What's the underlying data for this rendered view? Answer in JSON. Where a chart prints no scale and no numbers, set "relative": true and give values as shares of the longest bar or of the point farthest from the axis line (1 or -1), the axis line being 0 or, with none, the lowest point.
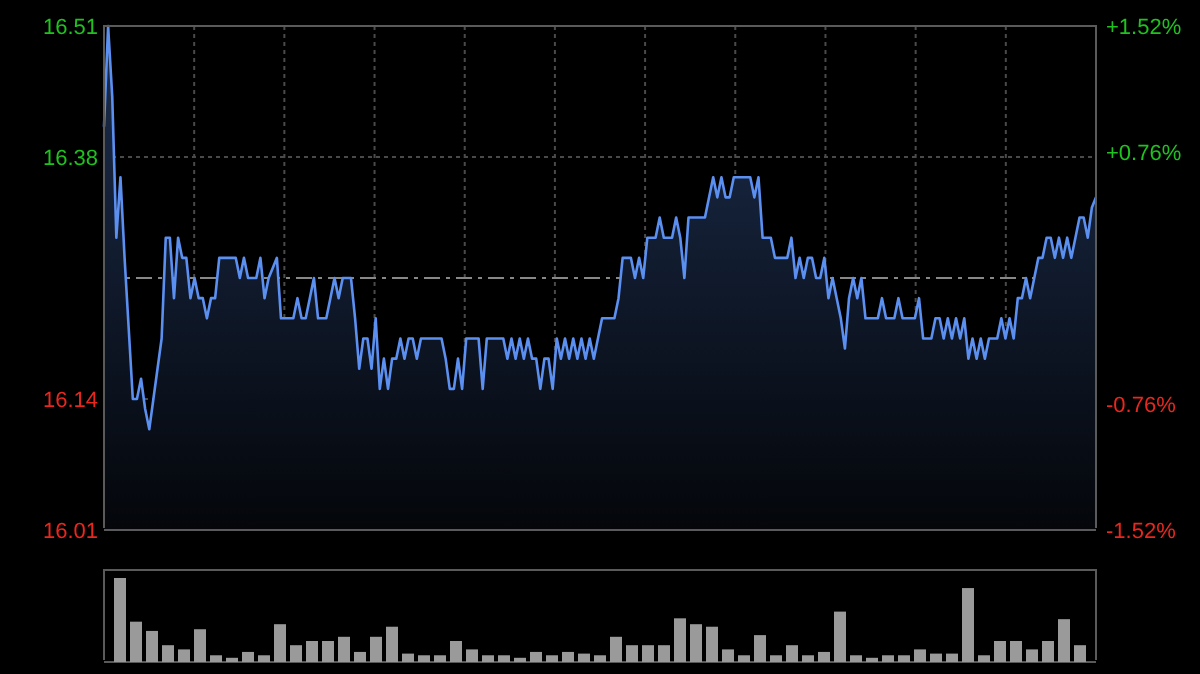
{
  "chart_data": [
    {
      "type": "area",
      "color": "#5b8ff0",
      "grid": true,
      "categories": [
        null,
        null,
        null,
        null,
        null,
        null,
        null,
        null,
        null,
        null,
        null,
        null,
        null,
        null,
        null,
        null,
        null,
        null,
        null,
        null,
        null,
        null,
        null,
        null,
        null,
        null,
        null,
        null,
        null,
        null,
        null,
        null,
        null,
        null,
        null,
        null,
        null,
        null,
        null,
        null,
        null,
        null,
        null,
        null,
        null,
        null,
        null,
        null,
        null,
        null,
        null,
        null,
        null,
        null,
        null,
        null,
        null,
        null,
        null,
        null,
        null,
        null,
        null,
        null,
        null,
        null,
        null,
        null,
        null,
        null,
        null,
        null,
        null,
        null,
        null,
        null,
        null,
        null,
        null,
        null,
        null,
        null,
        null,
        null,
        null,
        null,
        null,
        null,
        null,
        null,
        null,
        null,
        null,
        null,
        null,
        null,
        null,
        null,
        null,
        null,
        null,
        null,
        null,
        null,
        null,
        null,
        null,
        null,
        null,
        null,
        null,
        null,
        null,
        null,
        null,
        null,
        null,
        null,
        null,
        null,
        null,
        null,
        null,
        null,
        null,
        null,
        null,
        null,
        null,
        null,
        null,
        null,
        null,
        null,
        null,
        null,
        null,
        null,
        null,
        null,
        null,
        null,
        null,
        null,
        null,
        null,
        null,
        null,
        null,
        null,
        null,
        null,
        null,
        null,
        null,
        null,
        null,
        null,
        null,
        null,
        null,
        null,
        null,
        null,
        null,
        null,
        null,
        null,
        null,
        null,
        null,
        null,
        null,
        null,
        null,
        null,
        null,
        null,
        null,
        null,
        null,
        null,
        null,
        null,
        null,
        null,
        null,
        null,
        null,
        null,
        null,
        null,
        null,
        null,
        null,
        null,
        null,
        null,
        null,
        null,
        null,
        null,
        null,
        null,
        null,
        null,
        null,
        null,
        null,
        null,
        null,
        null,
        null,
        null,
        null,
        null,
        null,
        null,
        null,
        null,
        null,
        null,
        null,
        null,
        null,
        null,
        null,
        null,
        null,
        null,
        null,
        null,
        null,
        null,
        null,
        null,
        null,
        null,
        null,
        null,
        null,
        null
      ],
      "values": [
        16.41,
        16.51,
        16.44,
        16.3,
        16.36,
        16.28,
        16.21,
        16.14,
        16.14,
        16.16,
        16.13,
        16.11,
        16.14,
        16.17,
        16.2,
        16.3,
        16.3,
        16.24,
        16.3,
        16.28,
        16.28,
        16.24,
        16.26,
        16.24,
        16.24,
        16.22,
        16.24,
        16.24,
        16.28,
        16.28,
        16.28,
        16.28,
        16.28,
        16.26,
        16.28,
        16.26,
        16.26,
        16.26,
        16.28,
        16.24,
        16.26,
        16.27,
        16.28,
        16.22,
        16.22,
        16.22,
        16.22,
        16.24,
        16.22,
        16.22,
        16.24,
        16.26,
        16.22,
        16.22,
        16.22,
        16.24,
        16.26,
        16.24,
        16.26,
        16.26,
        16.26,
        16.22,
        16.17,
        16.2,
        16.2,
        16.17,
        16.22,
        16.15,
        16.18,
        16.15,
        16.18,
        16.18,
        16.2,
        16.18,
        16.2,
        16.2,
        16.18,
        16.2,
        16.2,
        16.2,
        16.2,
        16.2,
        16.2,
        16.18,
        16.15,
        16.15,
        16.18,
        16.15,
        16.2,
        16.2,
        16.2,
        16.2,
        16.15,
        16.2,
        16.2,
        16.2,
        16.2,
        16.2,
        16.18,
        16.2,
        16.18,
        16.2,
        16.18,
        16.2,
        16.18,
        16.18,
        16.15,
        16.18,
        16.18,
        16.15,
        16.2,
        16.18,
        16.2,
        16.18,
        16.2,
        16.18,
        16.2,
        16.18,
        16.2,
        16.18,
        16.2,
        16.22,
        16.22,
        16.22,
        16.22,
        16.24,
        16.28,
        16.28,
        16.28,
        16.26,
        16.28,
        16.26,
        16.3,
        16.3,
        16.3,
        16.32,
        16.3,
        16.3,
        16.3,
        16.32,
        16.3,
        16.26,
        16.32,
        16.32,
        16.32,
        16.32,
        16.32,
        16.34,
        16.36,
        16.34,
        16.36,
        16.34,
        16.34,
        16.36,
        16.36,
        16.36,
        16.36,
        16.36,
        16.34,
        16.36,
        16.3,
        16.3,
        16.3,
        16.28,
        16.28,
        16.28,
        16.28,
        16.3,
        16.26,
        16.28,
        16.26,
        16.28,
        16.28,
        16.26,
        16.26,
        16.28,
        16.24,
        16.26,
        16.24,
        16.22,
        16.19,
        16.24,
        16.26,
        16.24,
        16.26,
        16.22,
        16.22,
        16.22,
        16.22,
        16.24,
        16.22,
        16.22,
        16.22,
        16.24,
        16.22,
        16.22,
        16.22,
        16.22,
        16.24,
        16.2,
        16.2,
        16.2,
        16.22,
        16.22,
        16.2,
        16.22,
        16.2,
        16.22,
        16.2,
        16.22,
        16.18,
        16.2,
        16.18,
        16.2,
        16.18,
        16.2,
        16.2,
        16.2,
        16.22,
        16.2,
        16.22,
        16.2,
        16.24,
        16.24,
        16.26,
        16.24,
        16.26,
        16.28,
        16.28,
        16.3,
        16.3,
        16.28,
        16.3,
        16.28,
        16.3,
        16.28,
        16.3,
        16.32,
        16.32,
        16.3,
        16.33,
        16.34
      ],
      "ylim": [
        16.01,
        16.51
      ],
      "yticks": [
        16.51,
        16.38,
        16.14,
        16.01
      ],
      "y2lim": [
        -1.52,
        1.52
      ],
      "y2ticks": [
        {
          "value": 1.52,
          "label": "+1.52%"
        },
        {
          "value": 0.76,
          "label": "+0.76%"
        },
        {
          "value": -0.76,
          "label": "-0.76%"
        },
        {
          "value": -1.52,
          "label": "-1.52%"
        }
      ],
      "ref_lines": [
        {
          "axis": "y2",
          "value": 0,
          "line_style": "dashed"
        }
      ]
    },
    {
      "type": "bar",
      "relative": true,
      "color": "#9a9a9a",
      "categories": [
        null,
        null,
        null,
        null,
        null,
        null,
        null,
        null,
        null,
        null,
        null,
        null,
        null,
        null,
        null,
        null,
        null,
        null,
        null,
        null,
        null,
        null,
        null,
        null,
        null,
        null,
        null,
        null,
        null,
        null,
        null,
        null,
        null,
        null,
        null,
        null,
        null,
        null,
        null,
        null,
        null,
        null,
        null,
        null,
        null,
        null,
        null,
        null,
        null,
        null,
        null,
        null,
        null,
        null,
        null,
        null,
        null,
        null,
        null,
        null,
        null
      ],
      "values": [
        1,
        0.48,
        0.37,
        0.2,
        0.15,
        0.39,
        0.08,
        0.05,
        0.12,
        0.08,
        0.45,
        0.2,
        0.25,
        0.25,
        0.3,
        0.12,
        0.3,
        0.42,
        0.1,
        0.08,
        0.08,
        0.25,
        0.15,
        0.08,
        0.08,
        0.05,
        0.12,
        0.08,
        0.12,
        0.1,
        0.08,
        0.3,
        0.2,
        0.2,
        0.2,
        0.52,
        0.45,
        0.42,
        0.15,
        0.08,
        0.32,
        0.08,
        0.2,
        0.08,
        0.12,
        0.6,
        0.08,
        0.05,
        0.08,
        0.08,
        0.15,
        0.1,
        0.1,
        0.88,
        0.08,
        0.25,
        0.25,
        0.15,
        0.25,
        0.51,
        0.2
      ]
    }
  ]
}
